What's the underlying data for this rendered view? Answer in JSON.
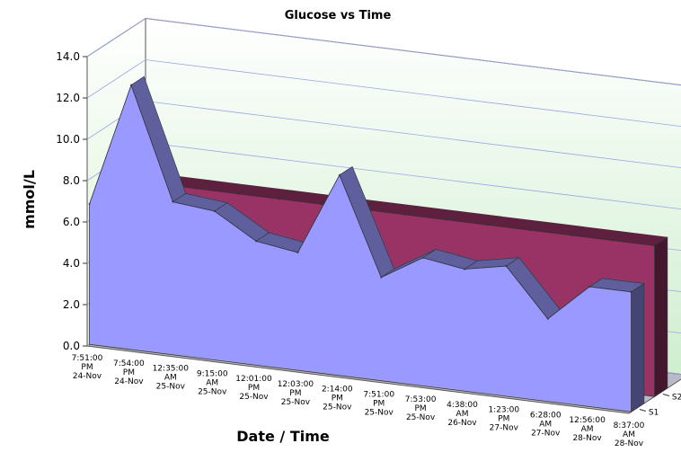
{
  "chart_data": {
    "type": "area",
    "title": "Glucose vs Time",
    "xlabel": "Date / Time",
    "ylabel": "mmol/L",
    "ylim": [
      0,
      14
    ],
    "yticks": [
      "0.0",
      "2.0",
      "4.0",
      "6.0",
      "8.0",
      "10.0",
      "12.0",
      "14.0"
    ],
    "categories": [
      [
        "7:51:00",
        "PM",
        "24-Nov"
      ],
      [
        "7:54:00",
        "PM",
        "24-Nov"
      ],
      [
        "12:35:00",
        "AM",
        "25-Nov"
      ],
      [
        "9:15:00",
        "AM",
        "25-Nov"
      ],
      [
        "12:01:00",
        "PM",
        "25-Nov"
      ],
      [
        "12:03:00",
        "PM",
        "25-Nov"
      ],
      [
        "2:14:00",
        "PM",
        "25-Nov"
      ],
      [
        "7:51:00",
        "PM",
        "25-Nov"
      ],
      [
        "7:53:00",
        "PM",
        "25-Nov"
      ],
      [
        "4:38:00",
        "AM",
        "26-Nov"
      ],
      [
        "1:23:00",
        "PM",
        "27-Nov"
      ],
      [
        "6:28:00",
        "AM",
        "27-Nov"
      ],
      [
        "12:56:00",
        "AM",
        "28-Nov"
      ],
      [
        "8:37:00",
        "AM",
        "28-Nov"
      ]
    ],
    "series": [
      {
        "name": "S1",
        "color": "#9999ff",
        "values": [
          6.8,
          12.8,
          7.4,
          7.2,
          6.0,
          5.7,
          9.7,
          5.0,
          6.2,
          5.9,
          6.3,
          4.0,
          5.8,
          5.8
        ]
      },
      {
        "name": "S2",
        "color": "#993366",
        "values": [
          7.3,
          7.3,
          7.3,
          7.3,
          7.3,
          7.3,
          7.3,
          7.3,
          7.3,
          7.3,
          7.3,
          7.3,
          7.3,
          7.3
        ]
      }
    ],
    "grid": true,
    "legend": "none"
  }
}
